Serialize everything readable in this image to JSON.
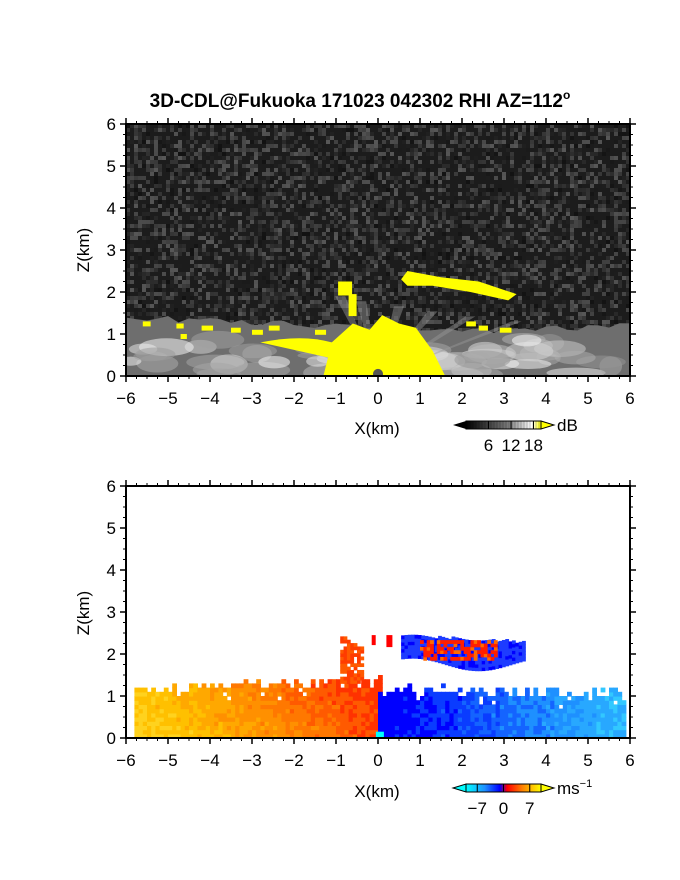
{
  "figure": {
    "title": "3D-CDL@Fukuoka 171023 042302 RHI AZ=112",
    "title_superscript": "o"
  },
  "chart_data": [
    {
      "type": "heatmap",
      "title": "3D-CDL@Fukuoka 171023 042302 RHI AZ=112°",
      "xlabel": "X(km)",
      "ylabel": "Z(km)",
      "xlim": [
        -6,
        6
      ],
      "ylim": [
        0,
        6
      ],
      "x_ticks": [
        -6,
        -5,
        -4,
        -3,
        -2,
        -1,
        0,
        1,
        2,
        3,
        4,
        5,
        6
      ],
      "y_ticks": [
        0,
        1,
        2,
        3,
        4,
        5,
        6
      ],
      "background": "noise",
      "colorbar": {
        "unit": "dB",
        "ticks": [
          6,
          12,
          18
        ],
        "range": [
          0,
          20
        ],
        "colors": [
          "#000000",
          "#ffffff",
          "#ffff00"
        ]
      },
      "features": [
        {
          "kind": "surface-layer",
          "x": [
            -6,
            6
          ],
          "z_top": [
            1.3,
            1.2
          ],
          "value_db": 10
        },
        {
          "kind": "core",
          "x": [
            -1,
            1.2
          ],
          "z_top": 1.4,
          "value_db": 20
        },
        {
          "kind": "elevated-layer",
          "x": [
            0.5,
            3.4
          ],
          "z": [
            1.8,
            2.5
          ],
          "value_db": 20
        },
        {
          "kind": "elevated-patch",
          "x": [
            -0.9,
            -0.5
          ],
          "z": [
            1.9,
            2.3
          ],
          "value_db": 20
        }
      ]
    },
    {
      "type": "heatmap",
      "xlabel": "X(km)",
      "ylabel": "Z(km)",
      "xlim": [
        -6,
        6
      ],
      "ylim": [
        0,
        6
      ],
      "x_ticks": [
        -6,
        -5,
        -4,
        -3,
        -2,
        -1,
        0,
        1,
        2,
        3,
        4,
        5,
        6
      ],
      "y_ticks": [
        0,
        1,
        2,
        3,
        4,
        5,
        6
      ],
      "background": "white",
      "colorbar": {
        "unit": "ms",
        "unit_superscript": "−1",
        "ticks": [
          -7,
          0,
          7
        ],
        "tick_labels": [
          "−7",
          "0",
          "7"
        ],
        "range": [
          -10,
          10
        ],
        "colors": [
          "#00ffff",
          "#1e90ff",
          "#0000ff",
          "#ff0000",
          "#ff8000",
          "#ffff00"
        ]
      },
      "features": [
        {
          "kind": "approaching-layer",
          "x": [
            -6,
            0
          ],
          "z_top": 1.35,
          "velocity_ms": 6
        },
        {
          "kind": "receding-layer",
          "x": [
            0,
            5.8
          ],
          "z_top": 1.15,
          "velocity_ms": -6
        },
        {
          "kind": "elevated-layer",
          "x": [
            0.5,
            3.5
          ],
          "z": [
            1.7,
            2.5
          ],
          "velocity_ms": -5
        },
        {
          "kind": "elevated-patch",
          "x": [
            -0.9,
            -0.4
          ],
          "z": [
            1.5,
            2.4
          ],
          "velocity_ms": 3
        },
        {
          "kind": "elevated-patch",
          "x": [
            1,
            2.8
          ],
          "z": [
            1.8,
            2.3
          ],
          "velocity_ms": 3
        }
      ]
    }
  ]
}
